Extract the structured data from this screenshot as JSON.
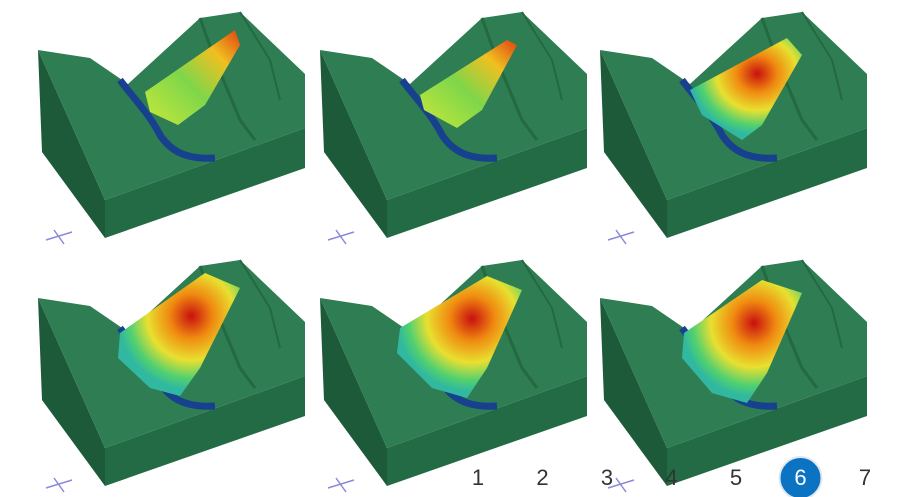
{
  "pagination": {
    "pages": [
      {
        "label": "1",
        "active": false
      },
      {
        "label": "2",
        "active": false
      },
      {
        "label": "3",
        "active": false
      },
      {
        "label": "4",
        "active": false
      },
      {
        "label": "5",
        "active": false
      },
      {
        "label": "6",
        "active": true
      },
      {
        "label": "7",
        "active": false
      }
    ]
  }
}
